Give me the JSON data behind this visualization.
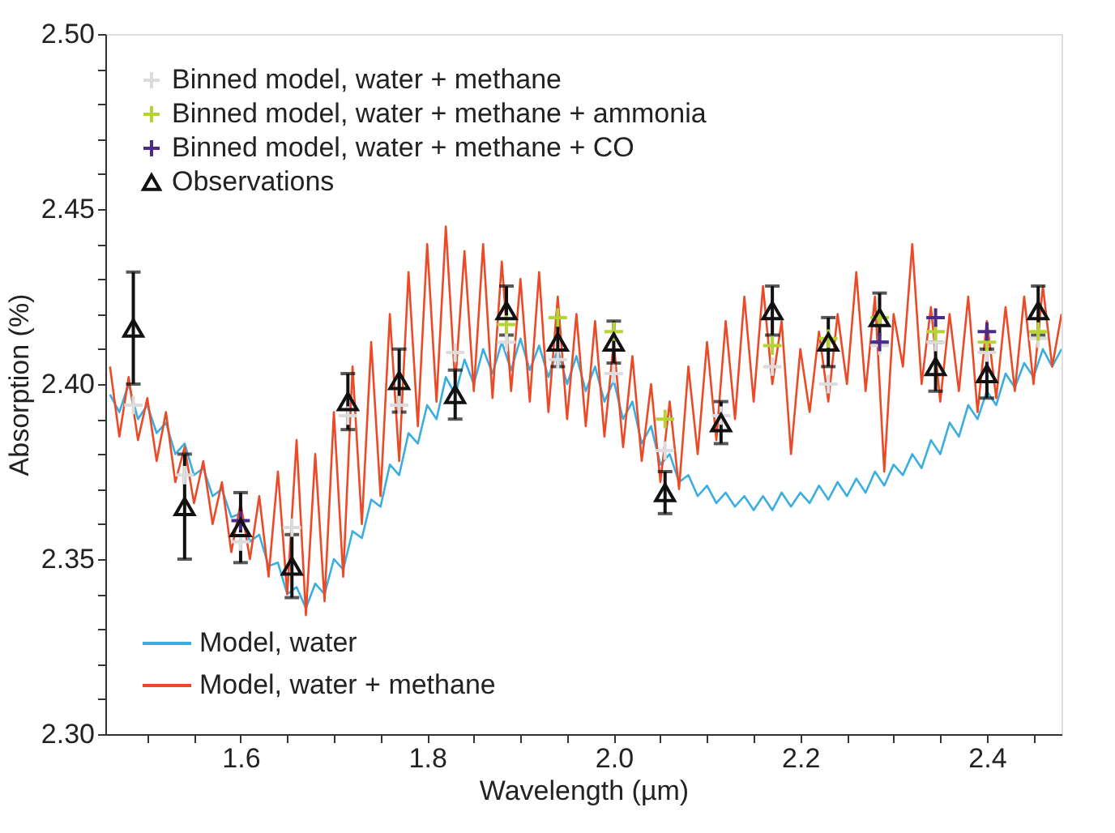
{
  "chart_data": {
    "type": "line",
    "xlabel": "Wavelength (µm)",
    "ylabel": "Absorption (%)",
    "xlim": [
      1.455,
      2.48
    ],
    "ylim": [
      2.3,
      2.5
    ],
    "xticks": [
      {
        "value": 1.5,
        "label": null
      },
      {
        "value": 1.55,
        "label": null
      },
      {
        "value": 1.6,
        "label": "1.6"
      },
      {
        "value": 1.65,
        "label": null
      },
      {
        "value": 1.7,
        "label": null
      },
      {
        "value": 1.75,
        "label": null
      },
      {
        "value": 1.8,
        "label": "1.8"
      },
      {
        "value": 1.85,
        "label": null
      },
      {
        "value": 1.9,
        "label": null
      },
      {
        "value": 1.95,
        "label": null
      },
      {
        "value": 2.0,
        "label": "2.0"
      },
      {
        "value": 2.05,
        "label": null
      },
      {
        "value": 2.1,
        "label": null
      },
      {
        "value": 2.15,
        "label": null
      },
      {
        "value": 2.2,
        "label": "2.2"
      },
      {
        "value": 2.25,
        "label": null
      },
      {
        "value": 2.3,
        "label": null
      },
      {
        "value": 2.35,
        "label": null
      },
      {
        "value": 2.4,
        "label": "2.4"
      },
      {
        "value": 2.45,
        "label": null
      }
    ],
    "yticks": [
      {
        "value": 2.3,
        "label": "2.30"
      },
      {
        "value": 2.31,
        "label": null
      },
      {
        "value": 2.32,
        "label": null
      },
      {
        "value": 2.33,
        "label": null
      },
      {
        "value": 2.34,
        "label": null
      },
      {
        "value": 2.35,
        "label": "2.35"
      },
      {
        "value": 2.36,
        "label": null
      },
      {
        "value": 2.37,
        "label": null
      },
      {
        "value": 2.38,
        "label": null
      },
      {
        "value": 2.39,
        "label": null
      },
      {
        "value": 2.4,
        "label": "2.40"
      },
      {
        "value": 2.41,
        "label": null
      },
      {
        "value": 2.42,
        "label": null
      },
      {
        "value": 2.43,
        "label": null
      },
      {
        "value": 2.44,
        "label": null
      },
      {
        "value": 2.45,
        "label": "2.45"
      },
      {
        "value": 2.46,
        "label": null
      },
      {
        "value": 2.47,
        "label": null
      },
      {
        "value": 2.48,
        "label": null
      },
      {
        "value": 2.49,
        "label": null
      },
      {
        "value": 2.5,
        "label": "2.50"
      }
    ],
    "legend": "left",
    "line_style": "solid",
    "series": [
      {
        "name": "Model, water",
        "color": "#3aaee0",
        "x": [
          1.46,
          1.47,
          1.48,
          1.49,
          1.5,
          1.51,
          1.52,
          1.53,
          1.54,
          1.55,
          1.56,
          1.57,
          1.58,
          1.59,
          1.6,
          1.61,
          1.62,
          1.63,
          1.64,
          1.65,
          1.66,
          1.67,
          1.68,
          1.69,
          1.7,
          1.71,
          1.72,
          1.73,
          1.74,
          1.75,
          1.76,
          1.77,
          1.78,
          1.79,
          1.8,
          1.81,
          1.82,
          1.83,
          1.84,
          1.85,
          1.86,
          1.87,
          1.88,
          1.89,
          1.9,
          1.91,
          1.92,
          1.93,
          1.94,
          1.95,
          1.96,
          1.97,
          1.98,
          1.99,
          2.0,
          2.01,
          2.02,
          2.03,
          2.04,
          2.05,
          2.06,
          2.07,
          2.08,
          2.09,
          2.1,
          2.11,
          2.12,
          2.13,
          2.14,
          2.15,
          2.16,
          2.17,
          2.18,
          2.19,
          2.2,
          2.21,
          2.22,
          2.23,
          2.24,
          2.25,
          2.26,
          2.27,
          2.28,
          2.29,
          2.3,
          2.31,
          2.32,
          2.33,
          2.34,
          2.35,
          2.36,
          2.37,
          2.38,
          2.39,
          2.4,
          2.41,
          2.42,
          2.43,
          2.44,
          2.45,
          2.46,
          2.47,
          2.48
        ],
        "values": [
          2.397,
          2.392,
          2.4,
          2.39,
          2.394,
          2.386,
          2.389,
          2.38,
          2.383,
          2.374,
          2.376,
          2.368,
          2.37,
          2.362,
          2.363,
          2.355,
          2.357,
          2.348,
          2.349,
          2.34,
          2.342,
          2.336,
          2.343,
          2.34,
          2.35,
          2.347,
          2.358,
          2.356,
          2.367,
          2.365,
          2.377,
          2.374,
          2.386,
          2.383,
          2.394,
          2.39,
          2.402,
          2.397,
          2.407,
          2.4,
          2.41,
          2.403,
          2.412,
          2.404,
          2.413,
          2.404,
          2.411,
          2.402,
          2.41,
          2.4,
          2.408,
          2.398,
          2.405,
          2.395,
          2.401,
          2.39,
          2.395,
          2.383,
          2.388,
          2.377,
          2.38,
          2.372,
          2.374,
          2.368,
          2.371,
          2.366,
          2.369,
          2.365,
          2.368,
          2.364,
          2.368,
          2.364,
          2.369,
          2.365,
          2.369,
          2.366,
          2.371,
          2.367,
          2.372,
          2.368,
          2.373,
          2.369,
          2.375,
          2.371,
          2.377,
          2.374,
          2.38,
          2.376,
          2.384,
          2.38,
          2.389,
          2.385,
          2.394,
          2.39,
          2.398,
          2.394,
          2.403,
          2.399,
          2.406,
          2.402,
          2.41,
          2.405,
          2.41
        ]
      },
      {
        "name": "Model, water + methane",
        "color": "#ec4a26",
        "x": [
          1.46,
          1.47,
          1.48,
          1.49,
          1.5,
          1.51,
          1.52,
          1.53,
          1.54,
          1.55,
          1.56,
          1.57,
          1.58,
          1.59,
          1.6,
          1.61,
          1.62,
          1.63,
          1.64,
          1.65,
          1.66,
          1.67,
          1.68,
          1.69,
          1.7,
          1.71,
          1.72,
          1.73,
          1.74,
          1.75,
          1.76,
          1.77,
          1.78,
          1.79,
          1.8,
          1.81,
          1.82,
          1.83,
          1.84,
          1.85,
          1.86,
          1.87,
          1.88,
          1.89,
          1.9,
          1.91,
          1.92,
          1.93,
          1.94,
          1.95,
          1.96,
          1.97,
          1.98,
          1.99,
          2.0,
          2.01,
          2.02,
          2.03,
          2.04,
          2.05,
          2.06,
          2.07,
          2.08,
          2.09,
          2.1,
          2.11,
          2.12,
          2.13,
          2.14,
          2.15,
          2.16,
          2.17,
          2.18,
          2.19,
          2.2,
          2.21,
          2.22,
          2.23,
          2.24,
          2.25,
          2.26,
          2.27,
          2.28,
          2.29,
          2.3,
          2.31,
          2.32,
          2.33,
          2.34,
          2.35,
          2.36,
          2.37,
          2.38,
          2.39,
          2.4,
          2.41,
          2.42,
          2.43,
          2.44,
          2.45,
          2.46,
          2.47,
          2.48
        ],
        "values": [
          2.405,
          2.385,
          2.402,
          2.384,
          2.396,
          2.378,
          2.392,
          2.372,
          2.382,
          2.366,
          2.378,
          2.36,
          2.372,
          2.352,
          2.366,
          2.35,
          2.368,
          2.345,
          2.375,
          2.34,
          2.384,
          2.334,
          2.38,
          2.338,
          2.392,
          2.345,
          2.405,
          2.36,
          2.412,
          2.368,
          2.42,
          2.378,
          2.432,
          2.388,
          2.44,
          2.395,
          2.445,
          2.4,
          2.438,
          2.398,
          2.44,
          2.396,
          2.435,
          2.398,
          2.43,
          2.395,
          2.432,
          2.392,
          2.425,
          2.39,
          2.42,
          2.388,
          2.418,
          2.385,
          2.412,
          2.382,
          2.408,
          2.378,
          2.4,
          2.372,
          2.395,
          2.37,
          2.405,
          2.38,
          2.412,
          2.384,
          2.418,
          2.39,
          2.425,
          2.395,
          2.428,
          2.4,
          2.418,
          2.38,
          2.41,
          2.392,
          2.415,
          2.395,
          2.42,
          2.4,
          2.432,
          2.398,
          2.425,
          2.375,
          2.42,
          2.405,
          2.44,
          2.4,
          2.422,
          2.395,
          2.42,
          2.398,
          2.425,
          2.392,
          2.418,
          2.396,
          2.422,
          2.398,
          2.425,
          2.4,
          2.428,
          2.405,
          2.42
        ]
      },
      {
        "name": "Binned model, water + methane",
        "type": "scatter",
        "marker": "cross",
        "color": "#dcdcdc",
        "x": [
          1.485,
          1.54,
          1.6,
          1.655,
          1.715,
          1.77,
          1.83,
          1.885,
          1.94,
          2.0,
          2.055,
          2.115,
          2.17,
          2.23,
          2.285,
          2.345,
          2.4,
          2.455
        ],
        "values": [
          2.394,
          2.374,
          2.355,
          2.359,
          2.391,
          2.394,
          2.409,
          2.412,
          2.407,
          2.403,
          2.381,
          2.391,
          2.405,
          2.4,
          2.411,
          2.412,
          2.409,
          2.413
        ]
      },
      {
        "name": "Binned model, water + methane + ammonia",
        "type": "scatter",
        "marker": "cross",
        "color": "#b5d334",
        "x": [
          1.885,
          1.94,
          2.0,
          2.055,
          2.17,
          2.23,
          2.285,
          2.345,
          2.4,
          2.455
        ],
        "values": [
          2.417,
          2.419,
          2.415,
          2.39,
          2.411,
          2.413,
          2.419,
          2.415,
          2.412,
          2.415
        ]
      },
      {
        "name": "Binned model, water + methane + CO",
        "type": "scatter",
        "marker": "cross",
        "color": "#4b2a8c",
        "x": [
          1.6,
          2.285,
          2.345,
          2.4
        ],
        "values": [
          2.361,
          2.412,
          2.419,
          2.415
        ]
      },
      {
        "name": "Observations",
        "type": "scatter",
        "marker": "triangle",
        "color": "#111111",
        "x": [
          1.485,
          1.54,
          1.6,
          1.655,
          1.715,
          1.77,
          1.83,
          1.885,
          1.94,
          2.0,
          2.055,
          2.115,
          2.17,
          2.23,
          2.285,
          2.345,
          2.4,
          2.455
        ],
        "values": [
          2.416,
          2.365,
          2.359,
          2.348,
          2.395,
          2.401,
          2.397,
          2.421,
          2.412,
          2.412,
          2.369,
          2.389,
          2.421,
          2.412,
          2.419,
          2.405,
          2.403,
          2.421
        ],
        "errors": [
          0.016,
          0.015,
          0.01,
          0.009,
          0.008,
          0.009,
          0.007,
          0.007,
          0.007,
          0.006,
          0.006,
          0.006,
          0.007,
          0.007,
          0.007,
          0.007,
          0.007,
          0.007
        ]
      }
    ]
  }
}
